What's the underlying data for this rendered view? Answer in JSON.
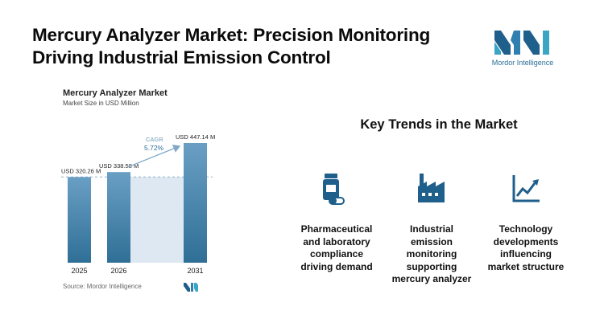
{
  "headline": "Mercury Analyzer Market: Precision Monitoring Driving Industrial Emission Control",
  "logo": {
    "text": "Mordor Intelligence",
    "color": "#2a6f97"
  },
  "chart_data": {
    "type": "bar",
    "title": "Mercury Analyzer Market",
    "subtitle": "Market Size in USD Million",
    "categories": [
      "2025",
      "2026",
      "2031"
    ],
    "values": [
      320.26,
      338.58,
      447.14
    ],
    "value_labels": [
      "USD 320.26 M",
      "USD 338.58 M",
      "USD 447.14 M"
    ],
    "cagr_label": "CAGR",
    "cagr_value": "5.72%",
    "ylim": [
      0,
      480
    ],
    "grid": false,
    "bar_color_top": "#6a9fc4",
    "bar_color_bottom": "#2f6f96",
    "shade_color": "#dde8f2",
    "arrow_color": "#7fa8c6",
    "source": "Source: Mordor Intelligence"
  },
  "trends": {
    "title": "Key Trends in the Market",
    "accent": "#1f5f8b",
    "items": [
      {
        "icon": "medicine-bottle-icon",
        "text_lines": [
          "Pharmaceutical",
          "and laboratory",
          "compliance",
          "driving demand"
        ]
      },
      {
        "icon": "factory-icon",
        "text_lines": [
          "Industrial",
          "emission",
          "monitoring",
          "supporting",
          "mercury analyzer"
        ]
      },
      {
        "icon": "line-chart-icon",
        "text_lines": [
          "Technology",
          "developments",
          "influencing",
          "market structure"
        ]
      }
    ]
  }
}
